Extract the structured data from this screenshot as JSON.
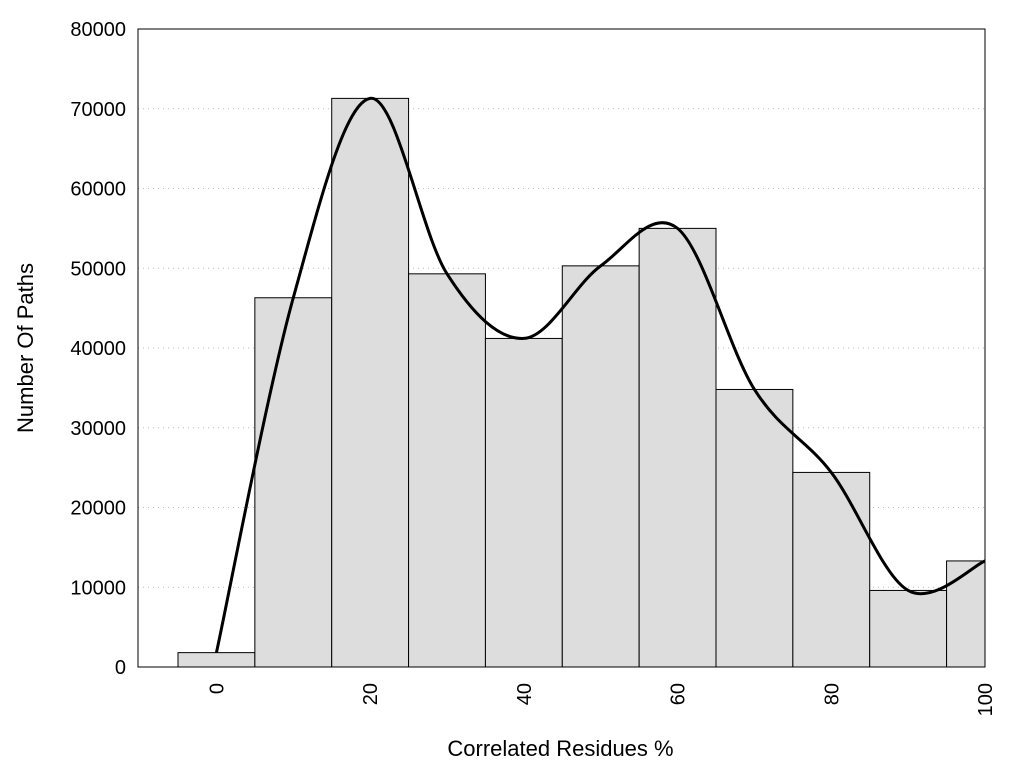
{
  "chart_data": {
    "type": "bar",
    "xlabel": "Correlated Residues %",
    "ylabel": "Number Of Paths",
    "x": [
      0,
      10,
      20,
      30,
      40,
      50,
      60,
      70,
      80,
      90,
      100
    ],
    "values": [
      1800,
      46300,
      71300,
      49300,
      41200,
      50300,
      55000,
      34800,
      24400,
      9600,
      13300
    ],
    "bin_width": 10,
    "curve": {
      "x": [
        0,
        10,
        20,
        30,
        40,
        50,
        60,
        70,
        80,
        90,
        100
      ],
      "y": [
        1800,
        46300,
        71300,
        49300,
        41200,
        50300,
        55000,
        34800,
        24400,
        9600,
        13300
      ]
    },
    "xlim": [
      -10,
      100
    ],
    "ylim": [
      0,
      80000
    ],
    "xticks": [
      "0",
      "20",
      "40",
      "60",
      "80",
      "100"
    ],
    "xtick_values": [
      0,
      20,
      40,
      60,
      80,
      100
    ],
    "yticks": [
      "0",
      "10000",
      "20000",
      "30000",
      "40000",
      "50000",
      "60000",
      "70000",
      "80000"
    ],
    "ytick_values": [
      0,
      10000,
      20000,
      30000,
      40000,
      50000,
      60000,
      70000,
      80000
    ],
    "grid": "horizontal-dotted",
    "colors": {
      "bar_fill": "#dddddd",
      "bar_stroke": "#000000",
      "curve": "#000000"
    }
  }
}
